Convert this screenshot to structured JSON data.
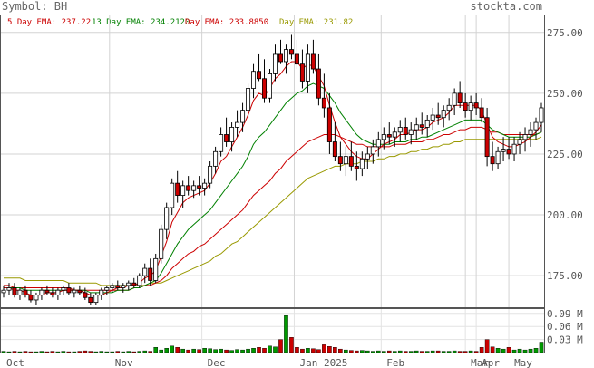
{
  "header": {
    "symbol_label": "Symbol: BH",
    "brand": "stockta.com"
  },
  "legend": [
    {
      "label": "5 Day EMA:",
      "value": "237.22",
      "color": "#cc0000"
    },
    {
      "label": "13 Day EMA:",
      "value": "234.2120",
      "color": "#008000"
    },
    {
      "label": "Day EMA:",
      "value": "233.8850",
      "color": "#cc0000"
    },
    {
      "label": "Day EMA:",
      "value": "231.82",
      "color": "#999900"
    }
  ],
  "chart_data": [
    {
      "type": "candlestick",
      "x_ticks": [
        "Oct",
        "Nov",
        "Dec",
        "Jan 2025",
        "Feb",
        "Mar",
        "Apr",
        "May"
      ],
      "y_ticks": [
        "275.00",
        "250.00",
        "225.00",
        "200.00",
        "175.00"
      ],
      "ylim": [
        162,
        282
      ],
      "grid": true,
      "up_color": "#ffffff",
      "down_color": "#cc0000",
      "ema_colors": [
        "#cc0000",
        "#008000",
        "#cc0000",
        "#999900"
      ],
      "ohlc": [
        [
          168,
          171,
          166,
          169
        ],
        [
          169,
          172,
          167,
          170
        ],
        [
          170,
          172,
          166,
          167
        ],
        [
          167,
          170,
          165,
          169
        ],
        [
          169,
          171,
          166,
          167
        ],
        [
          167,
          169,
          164,
          165
        ],
        [
          165,
          168,
          163,
          167
        ],
        [
          167,
          170,
          165,
          169
        ],
        [
          169,
          171,
          167,
          168
        ],
        [
          168,
          170,
          166,
          167
        ],
        [
          167,
          170,
          165,
          169
        ],
        [
          169,
          171,
          167,
          170
        ],
        [
          170,
          172,
          167,
          168
        ],
        [
          168,
          170,
          166,
          169
        ],
        [
          169,
          171,
          167,
          168
        ],
        [
          168,
          170,
          165,
          166
        ],
        [
          166,
          168,
          163,
          164
        ],
        [
          164,
          168,
          163,
          167
        ],
        [
          167,
          170,
          165,
          169
        ],
        [
          169,
          171,
          167,
          170
        ],
        [
          170,
          172,
          168,
          171
        ],
        [
          171,
          173,
          169,
          170
        ],
        [
          170,
          172,
          168,
          171
        ],
        [
          171,
          173,
          169,
          172
        ],
        [
          172,
          174,
          170,
          171
        ],
        [
          171,
          176,
          170,
          175
        ],
        [
          175,
          180,
          172,
          178
        ],
        [
          178,
          182,
          171,
          173
        ],
        [
          173,
          184,
          172,
          182
        ],
        [
          182,
          196,
          180,
          194
        ],
        [
          194,
          205,
          190,
          203
        ],
        [
          203,
          215,
          200,
          213
        ],
        [
          213,
          218,
          205,
          208
        ],
        [
          208,
          214,
          203,
          212
        ],
        [
          212,
          216,
          208,
          210
        ],
        [
          210,
          214,
          207,
          212
        ],
        [
          212,
          216,
          208,
          211
        ],
        [
          211,
          215,
          208,
          213
        ],
        [
          213,
          222,
          211,
          220
        ],
        [
          220,
          228,
          217,
          226
        ],
        [
          226,
          236,
          224,
          233
        ],
        [
          233,
          240,
          228,
          230
        ],
        [
          230,
          238,
          226,
          236
        ],
        [
          236,
          243,
          232,
          238
        ],
        [
          238,
          246,
          234,
          243
        ],
        [
          243,
          254,
          240,
          252
        ],
        [
          252,
          262,
          248,
          259
        ],
        [
          259,
          266,
          255,
          256
        ],
        [
          256,
          264,
          246,
          248
        ],
        [
          248,
          260,
          246,
          258
        ],
        [
          258,
          270,
          255,
          266
        ],
        [
          266,
          272,
          262,
          263
        ],
        [
          263,
          270,
          258,
          268
        ],
        [
          268,
          274,
          264,
          266
        ],
        [
          266,
          272,
          260,
          262
        ],
        [
          262,
          268,
          252,
          255
        ],
        [
          255,
          270,
          250,
          266
        ],
        [
          266,
          272,
          258,
          260
        ],
        [
          260,
          266,
          245,
          248
        ],
        [
          248,
          258,
          240,
          244
        ],
        [
          244,
          250,
          225,
          230
        ],
        [
          230,
          238,
          222,
          224
        ],
        [
          224,
          230,
          218,
          221
        ],
        [
          221,
          228,
          216,
          224
        ],
        [
          224,
          230,
          218,
          220
        ],
        [
          220,
          226,
          214,
          219
        ],
        [
          219,
          226,
          216,
          223
        ],
        [
          223,
          228,
          219,
          225
        ],
        [
          225,
          231,
          221,
          228
        ],
        [
          228,
          234,
          224,
          231
        ],
        [
          231,
          236,
          227,
          233
        ],
        [
          233,
          238,
          229,
          232
        ],
        [
          232,
          236,
          228,
          234
        ],
        [
          234,
          239,
          230,
          236
        ],
        [
          236,
          240,
          231,
          233
        ],
        [
          233,
          238,
          229,
          235
        ],
        [
          235,
          240,
          231,
          237
        ],
        [
          237,
          242,
          233,
          236
        ],
        [
          236,
          241,
          232,
          239
        ],
        [
          239,
          244,
          235,
          241
        ],
        [
          241,
          246,
          237,
          240
        ],
        [
          240,
          245,
          236,
          243
        ],
        [
          243,
          248,
          239,
          245
        ],
        [
          245,
          252,
          241,
          250
        ],
        [
          250,
          255,
          244,
          246
        ],
        [
          246,
          250,
          240,
          243
        ],
        [
          243,
          249,
          239,
          246
        ],
        [
          246,
          250,
          241,
          244
        ],
        [
          244,
          248,
          238,
          240
        ],
        [
          240,
          244,
          220,
          224
        ],
        [
          224,
          230,
          218,
          221
        ],
        [
          221,
          228,
          219,
          226
        ],
        [
          226,
          232,
          222,
          227
        ],
        [
          227,
          232,
          223,
          225
        ],
        [
          225,
          232,
          222,
          229
        ],
        [
          229,
          234,
          225,
          231
        ],
        [
          231,
          236,
          226,
          233
        ],
        [
          233,
          238,
          228,
          235
        ],
        [
          235,
          240,
          231,
          238
        ],
        [
          238,
          246,
          234,
          244
        ]
      ],
      "ema5": [
        170,
        170,
        169,
        169,
        168,
        167,
        167,
        167,
        168,
        168,
        168,
        169,
        169,
        169,
        169,
        168,
        167,
        167,
        167,
        168,
        169,
        170,
        170,
        171,
        171,
        172,
        174,
        175,
        177,
        183,
        189,
        197,
        201,
        205,
        207,
        208,
        209,
        210,
        213,
        217,
        222,
        224,
        228,
        232,
        236,
        241,
        247,
        250,
        249,
        252,
        256,
        258,
        261,
        263,
        263,
        260,
        262,
        261,
        257,
        253,
        245,
        238,
        232,
        229,
        226,
        224,
        223,
        223,
        225,
        227,
        229,
        230,
        231,
        233,
        233,
        234,
        235,
        235,
        236,
        238,
        239,
        240,
        242,
        245,
        245,
        245,
        245,
        245,
        243,
        237,
        232,
        230,
        229,
        228,
        228,
        229,
        230,
        232,
        234,
        237
      ],
      "ema13": [
        170,
        170,
        170,
        170,
        169,
        169,
        169,
        169,
        169,
        169,
        169,
        169,
        169,
        169,
        169,
        169,
        168,
        168,
        168,
        168,
        168,
        169,
        169,
        169,
        170,
        170,
        171,
        172,
        173,
        176,
        180,
        184,
        188,
        191,
        194,
        196,
        198,
        200,
        202,
        205,
        208,
        211,
        214,
        217,
        220,
        224,
        229,
        232,
        234,
        237,
        240,
        243,
        246,
        248,
        250,
        251,
        253,
        254,
        253,
        252,
        249,
        246,
        242,
        239,
        236,
        233,
        231,
        230,
        229,
        229,
        229,
        229,
        230,
        230,
        230,
        231,
        231,
        232,
        232,
        233,
        234,
        235,
        236,
        237,
        238,
        239,
        239,
        239,
        239,
        237,
        235,
        234,
        233,
        232,
        232,
        232,
        232,
        232,
        233,
        234
      ],
      "ema_mid": [
        171,
        171,
        170,
        170,
        170,
        170,
        170,
        170,
        170,
        170,
        170,
        170,
        170,
        169,
        169,
        169,
        169,
        169,
        169,
        169,
        169,
        169,
        169,
        169,
        170,
        170,
        171,
        171,
        172,
        173,
        175,
        178,
        180,
        182,
        184,
        185,
        187,
        188,
        190,
        192,
        194,
        196,
        198,
        200,
        202,
        205,
        208,
        210,
        212,
        214,
        217,
        219,
        222,
        224,
        226,
        228,
        230,
        231,
        232,
        233,
        233,
        233,
        232,
        231,
        230,
        229,
        229,
        228,
        228,
        228,
        228,
        228,
        229,
        229,
        229,
        230,
        230,
        230,
        231,
        231,
        232,
        233,
        233,
        234,
        235,
        235,
        236,
        236,
        236,
        235,
        234,
        234,
        233,
        233,
        233,
        233,
        233,
        233,
        233,
        234
      ],
      "ema_long": [
        174,
        174,
        174,
        174,
        173,
        173,
        173,
        173,
        173,
        173,
        173,
        173,
        172,
        172,
        172,
        172,
        172,
        172,
        171,
        171,
        171,
        171,
        171,
        171,
        171,
        171,
        171,
        172,
        172,
        172,
        173,
        174,
        175,
        176,
        177,
        178,
        179,
        180,
        181,
        183,
        184,
        186,
        188,
        189,
        191,
        193,
        195,
        197,
        199,
        201,
        203,
        205,
        207,
        209,
        211,
        213,
        215,
        216,
        217,
        218,
        219,
        220,
        220,
        221,
        221,
        221,
        222,
        222,
        222,
        223,
        223,
        224,
        224,
        225,
        225,
        226,
        226,
        227,
        227,
        228,
        228,
        229,
        229,
        230,
        230,
        231,
        231,
        231,
        231,
        231,
        231,
        231,
        231,
        231,
        231,
        231,
        231,
        231,
        231,
        232
      ],
      "volume": [
        0.003,
        0.002,
        0.003,
        0.002,
        0.003,
        0.002,
        0.002,
        0.003,
        0.002,
        0.003,
        0.002,
        0.003,
        0.002,
        0.002,
        0.003,
        0.004,
        0.003,
        0.002,
        0.003,
        0.002,
        0.002,
        0.003,
        0.002,
        0.003,
        0.002,
        0.003,
        0.004,
        0.003,
        0.012,
        0.006,
        0.01,
        0.015,
        0.012,
        0.008,
        0.006,
        0.008,
        0.007,
        0.01,
        0.009,
        0.007,
        0.008,
        0.006,
        0.005,
        0.007,
        0.006,
        0.008,
        0.01,
        0.012,
        0.01,
        0.015,
        0.013,
        0.03,
        0.085,
        0.035,
        0.012,
        0.008,
        0.01,
        0.009,
        0.007,
        0.018,
        0.014,
        0.012,
        0.008,
        0.006,
        0.005,
        0.004,
        0.005,
        0.004,
        0.003,
        0.004,
        0.003,
        0.004,
        0.003,
        0.004,
        0.003,
        0.003,
        0.004,
        0.003,
        0.003,
        0.004,
        0.004,
        0.003,
        0.003,
        0.004,
        0.003,
        0.003,
        0.004,
        0.003,
        0.012,
        0.03,
        0.013,
        0.01,
        0.008,
        0.012,
        0.006,
        0.008,
        0.006,
        0.008,
        0.01,
        0.024
      ],
      "volume_ticks": [
        "0.09 M",
        "0.06 M",
        "0.03 M"
      ],
      "volume_ylim": [
        0,
        0.1
      ]
    }
  ]
}
